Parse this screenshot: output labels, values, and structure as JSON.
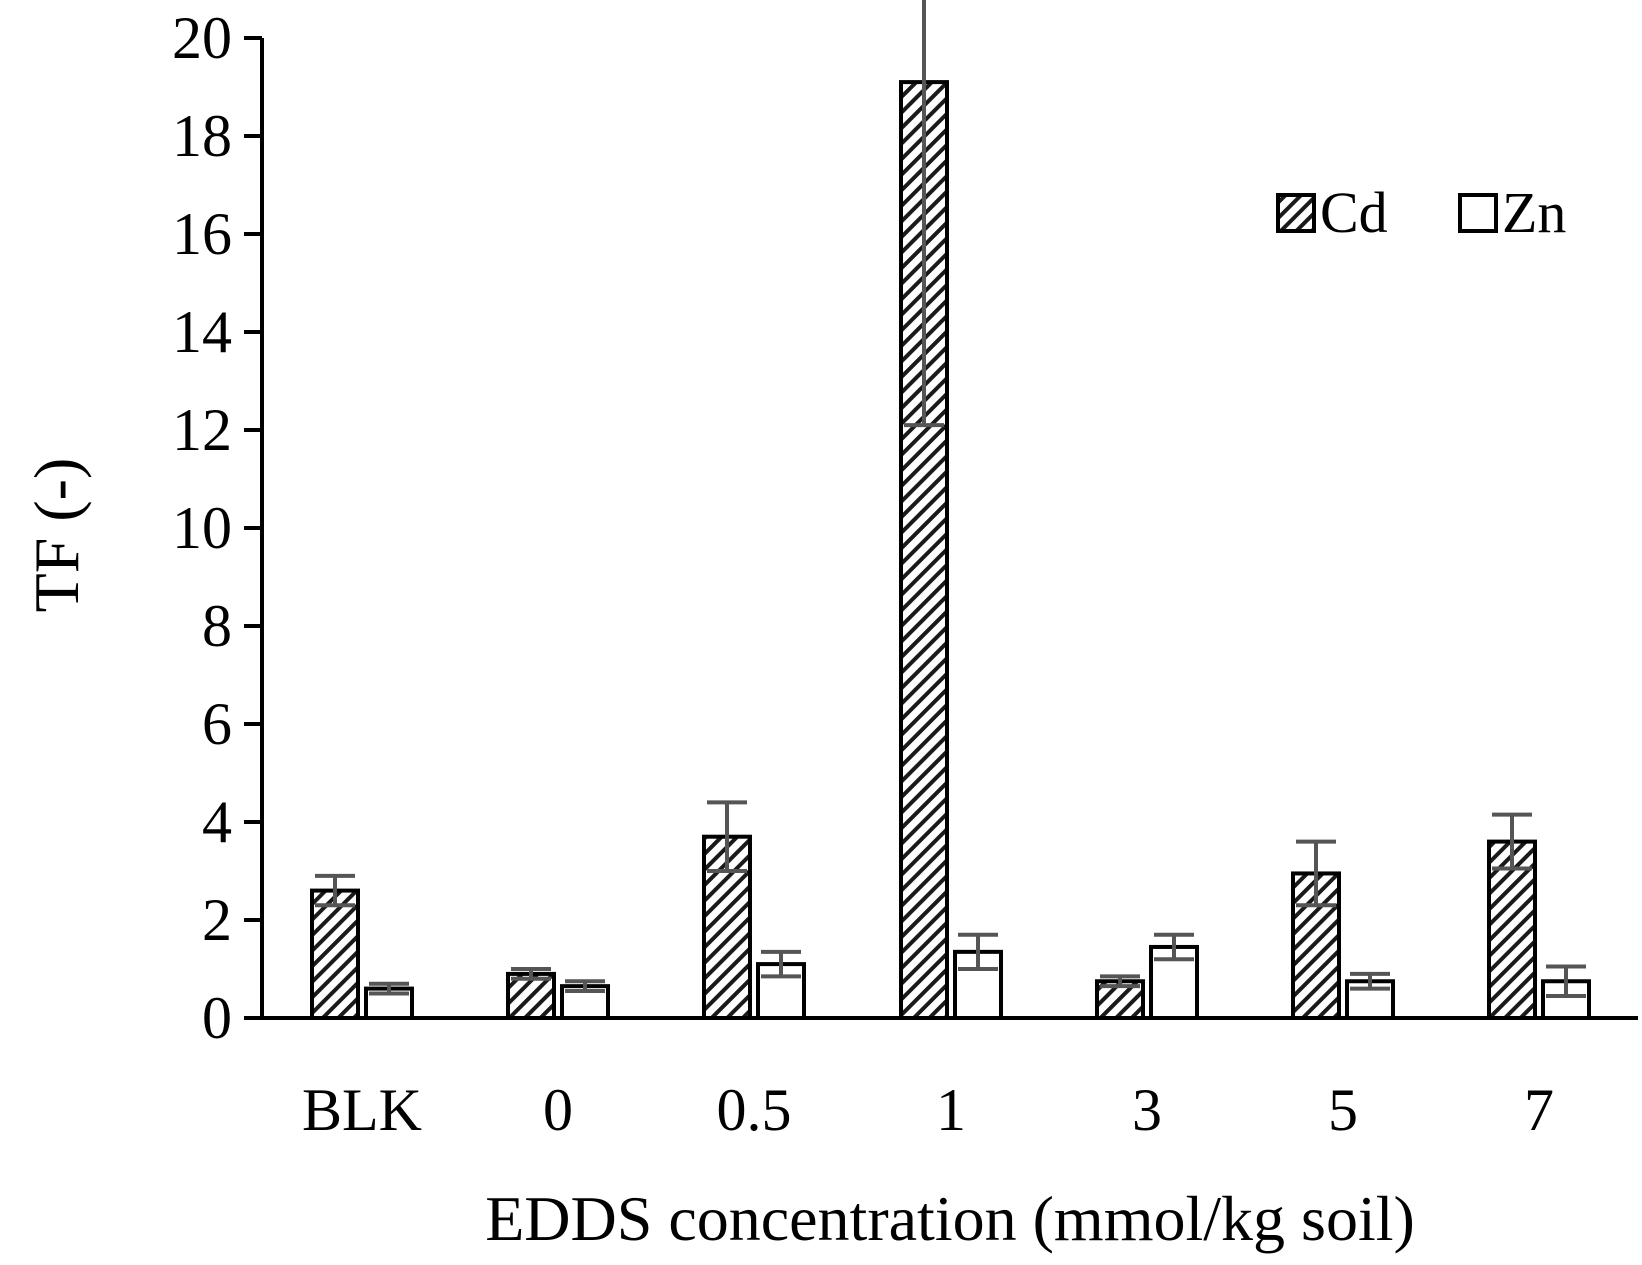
{
  "chart_data": {
    "type": "bar",
    "title": "",
    "xlabel": "EDDS concentration (mmol/kg soil)",
    "ylabel": "TF (-)",
    "ylim": [
      0,
      20
    ],
    "yticks": [
      "0",
      "2",
      "4",
      "6",
      "8",
      "10",
      "12",
      "14",
      "16",
      "18",
      "20"
    ],
    "categories": [
      "BLK",
      "0",
      "0.5",
      "1",
      "3",
      "5",
      "7"
    ],
    "series": [
      {
        "name": "Cd",
        "pattern": "diagonal-hatch",
        "values": [
          2.6,
          0.9,
          3.7,
          19.1,
          0.75,
          2.95,
          3.6
        ],
        "errors": [
          0.3,
          0.1,
          0.7,
          7.0,
          0.1,
          0.65,
          0.55
        ]
      },
      {
        "name": "Zn",
        "pattern": "none",
        "values": [
          0.6,
          0.65,
          1.1,
          1.35,
          1.45,
          0.75,
          0.75
        ],
        "errors": [
          0.1,
          0.1,
          0.25,
          0.35,
          0.25,
          0.15,
          0.3
        ]
      }
    ],
    "legend": {
      "position": "top-right"
    },
    "grid": false,
    "colors": {
      "bar_stroke": "#000000",
      "error_bar": "#555555",
      "bar_fill": "#ffffff"
    }
  }
}
